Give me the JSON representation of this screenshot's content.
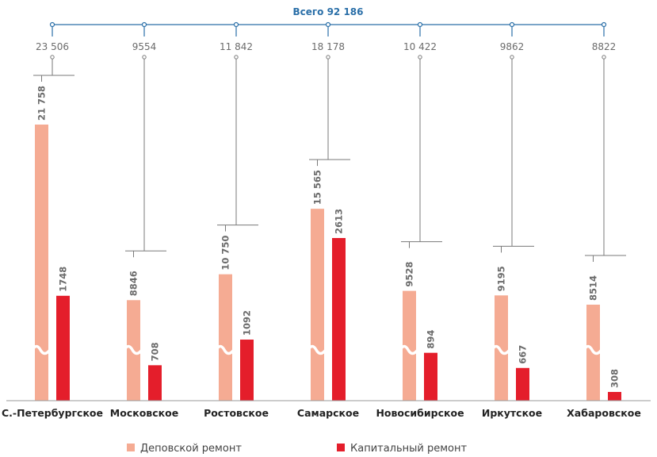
{
  "chart_data": {
    "type": "bar",
    "total_label": "Всего 92 186",
    "categories": [
      "С.-Петербургское",
      "Московское",
      "Ростовское",
      "Самарское",
      "Новосибирское",
      "Иркутское",
      "Хабаровское"
    ],
    "group_totals": [
      "23 506",
      "9554",
      "11 842",
      "18 178",
      "10 422",
      "9862",
      "8822"
    ],
    "series": [
      {
        "name": "Деповской ремонт",
        "values": [
          21758,
          8846,
          10750,
          15565,
          9528,
          9195,
          8514
        ],
        "labels": [
          "21 758",
          "8846",
          "10 750",
          "15 565",
          "9528",
          "9195",
          "8514"
        ],
        "color": "#f5ab93"
      },
      {
        "name": "Капитальный ремонт",
        "values": [
          1748,
          708,
          1092,
          2613,
          894,
          667,
          308
        ],
        "labels": [
          "1748",
          "708",
          "1092",
          "2613",
          "894",
          "667",
          "308"
        ],
        "color": "#e41e2b"
      }
    ],
    "axis_broken": true,
    "legend_position": "bottom",
    "line_color": "#2a6fa8"
  }
}
